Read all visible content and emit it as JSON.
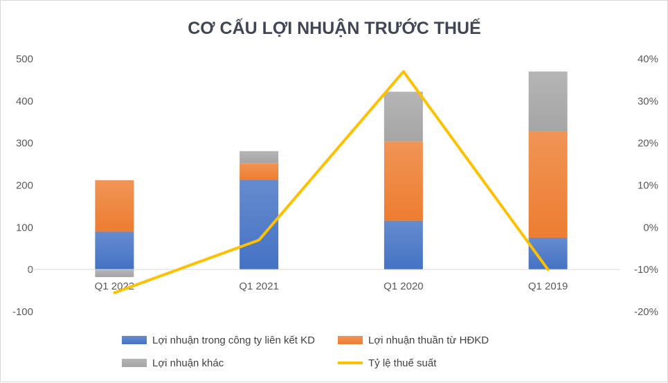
{
  "chart_data": {
    "type": "bar",
    "stacked": true,
    "title": "CƠ CẤU LỢI NHUẬN TRƯỚC THUẾ",
    "categories": [
      "Q1 2022",
      "Q1 2021",
      "Q1 2020",
      "Q1 2019"
    ],
    "series": [
      {
        "name": "Lợi nhuận trong công ty liên kết KD",
        "color": "#4472c4",
        "values": [
          90,
          213,
          116,
          76
        ]
      },
      {
        "name": "Lợi nhuận thuần từ HĐKD",
        "color": "#ed7d31",
        "values": [
          122,
          40,
          188,
          253
        ]
      },
      {
        "name": "Lợi nhuận khác",
        "color": "#a5a5a5",
        "values": [
          -18,
          28,
          118,
          141
        ]
      },
      {
        "name": "Tỷ lệ thuế suất",
        "color": "#ffc000",
        "type": "line",
        "axis": "secondary",
        "values": [
          -15.5,
          -3.0,
          37.0,
          -10.0
        ]
      }
    ],
    "ylim": [
      -100,
      500
    ],
    "yticks": [
      "-100",
      "0",
      "100",
      "200",
      "300",
      "400",
      "500"
    ],
    "y2lim": [
      -20,
      40
    ],
    "y2ticks": [
      "-20%",
      "-10%",
      "0%",
      "10%",
      "20%",
      "30%",
      "40%"
    ],
    "grid": false,
    "legend": "bottom"
  }
}
